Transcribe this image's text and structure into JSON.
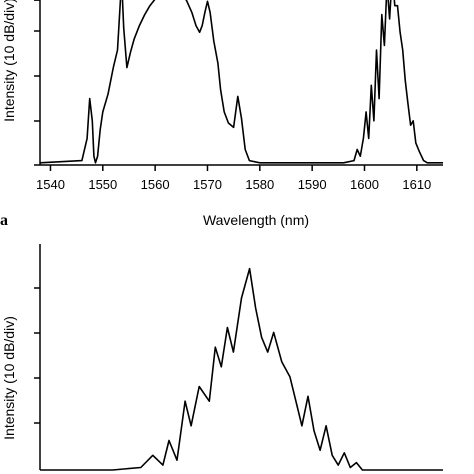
{
  "chart_data": [
    {
      "type": "line",
      "panel_label": "a",
      "xlabel": "Wavelength (nm)",
      "ylabel": "Intensity (10 dB/div)",
      "xlim": [
        1538,
        1615
      ],
      "ylim": [
        0,
        4
      ],
      "x_ticks": [
        1540,
        1550,
        1560,
        1570,
        1580,
        1590,
        1600,
        1610
      ],
      "y_tick_count": 5,
      "grid": false,
      "series": [
        {
          "x": [
            1538,
            1546,
            1547,
            1547.5,
            1548,
            1548.3,
            1548.6,
            1549,
            1549.5,
            1550,
            1551,
            1552,
            1552.8,
            1553.3,
            1553.6,
            1554,
            1554.6,
            1555.3,
            1556,
            1557,
            1558,
            1559,
            1560,
            1561,
            1562,
            1563,
            1564,
            1565,
            1566,
            1567,
            1567.8,
            1568.5,
            1569,
            1569.5,
            1570,
            1570.5,
            1571.2,
            1572,
            1572.5,
            1573.2,
            1574,
            1575,
            1575.8,
            1576.5,
            1577.2,
            1578,
            1580,
            1585,
            1590,
            1596,
            1598,
            1598.6,
            1599.2,
            1599.8,
            1600.3,
            1600.8,
            1601.3,
            1601.8,
            1602.3,
            1602.8,
            1603.3,
            1603.8,
            1604.3,
            1604.8,
            1605.3,
            1605.8,
            1606.3,
            1606.8,
            1607.3,
            1607.8,
            1608.3,
            1608.8,
            1609.3,
            1609.8,
            1610.5,
            1611.3,
            1612,
            1615
          ],
          "y": [
            0.05,
            0.1,
            0.6,
            1.5,
            1.0,
            0.2,
            0.05,
            0.2,
            0.8,
            1.2,
            1.6,
            2.2,
            2.6,
            3.6,
            4.2,
            3.1,
            2.2,
            2.55,
            2.85,
            3.15,
            3.4,
            3.6,
            3.75,
            3.85,
            3.92,
            3.95,
            3.92,
            3.85,
            3.72,
            3.45,
            3.15,
            3.0,
            3.15,
            3.45,
            3.7,
            3.45,
            2.8,
            2.3,
            1.7,
            1.2,
            0.95,
            0.85,
            1.55,
            1.05,
            0.35,
            0.1,
            0.05,
            0.05,
            0.05,
            0.05,
            0.1,
            0.35,
            0.2,
            0.6,
            1.2,
            0.6,
            1.8,
            1.0,
            2.6,
            1.5,
            3.4,
            2.7,
            4.1,
            3.3,
            4.3,
            3.6,
            3.6,
            3.0,
            2.6,
            1.9,
            1.4,
            0.9,
            1.0,
            0.5,
            0.3,
            0.1,
            0.05,
            0.05
          ]
        }
      ]
    },
    {
      "type": "line",
      "panel_label": "",
      "xlabel": "",
      "ylabel": "Intensity (10 dB/div)",
      "xlim": [
        0,
        100
      ],
      "ylim": [
        0,
        4.6
      ],
      "y_tick_count": 5,
      "grid": false,
      "series": [
        {
          "x": [
            0,
            18,
            25,
            28,
            30.5,
            32,
            34,
            36,
            37.5,
            39.5,
            42,
            43.5,
            45,
            46.5,
            48,
            50,
            52,
            53.5,
            55,
            56.5,
            58,
            60,
            62,
            63.5,
            65,
            66.5,
            68,
            69.5,
            71,
            72.5,
            74,
            75.5,
            77,
            78.5,
            80,
            100
          ],
          "y": [
            0,
            0,
            0.05,
            0.3,
            0.1,
            0.6,
            0.2,
            1.4,
            0.9,
            1.7,
            1.4,
            2.5,
            2.1,
            2.9,
            2.4,
            3.5,
            4.1,
            3.3,
            2.7,
            2.4,
            2.8,
            2.2,
            1.9,
            1.4,
            0.9,
            1.5,
            0.8,
            0.4,
            0.9,
            0.3,
            0.1,
            0.35,
            0.05,
            0.15,
            0,
            0
          ]
        }
      ]
    }
  ]
}
